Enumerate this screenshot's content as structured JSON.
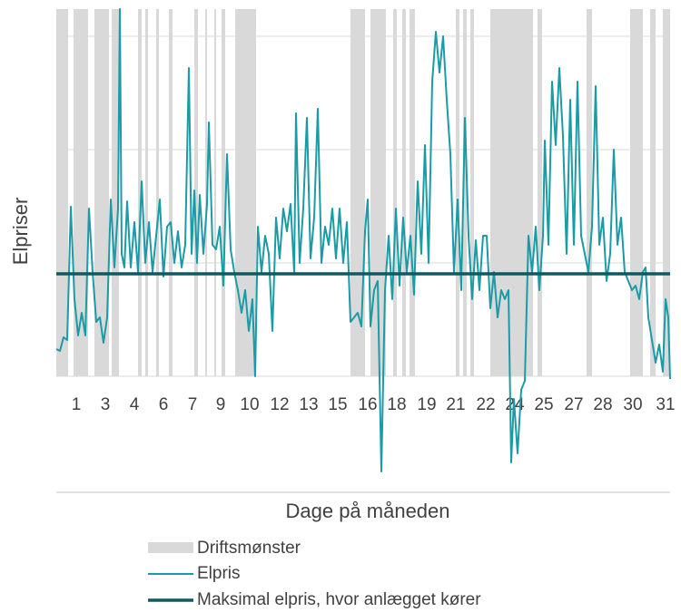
{
  "chart_data": {
    "type": "line",
    "ylabel": "Elpriser",
    "xlabel": "Dage på måneden",
    "xlim": [
      0,
      676
    ],
    "ylim": [
      -128,
      405
    ],
    "yticks": [
      0,
      125,
      250,
      375
    ],
    "grid": true,
    "xticks": [
      {
        "value": 22,
        "label": "1"
      },
      {
        "value": 54,
        "label": "3"
      },
      {
        "value": 86,
        "label": "4"
      },
      {
        "value": 118,
        "label": "6"
      },
      {
        "value": 150,
        "label": "7"
      },
      {
        "value": 181,
        "label": "9"
      },
      {
        "value": 213,
        "label": "10"
      },
      {
        "value": 246,
        "label": "12"
      },
      {
        "value": 278,
        "label": "13"
      },
      {
        "value": 310,
        "label": "15"
      },
      {
        "value": 343,
        "label": "16"
      },
      {
        "value": 375,
        "label": "18"
      },
      {
        "value": 408,
        "label": "19"
      },
      {
        "value": 440,
        "label": "21"
      },
      {
        "value": 473,
        "label": "22"
      },
      {
        "value": 505,
        "label": "24"
      },
      {
        "value": 537,
        "label": "25"
      },
      {
        "value": 570,
        "label": "27"
      },
      {
        "value": 602,
        "label": "28"
      },
      {
        "value": 635,
        "label": "30"
      },
      {
        "value": 671,
        "label": "31"
      }
    ],
    "bands": {
      "name": "Driftsmønster",
      "color": "#d9d9d9",
      "ranges": [
        [
          0,
          13
        ],
        [
          19,
          35
        ],
        [
          42,
          58
        ],
        [
          61,
          69
        ],
        [
          90,
          94
        ],
        [
          98,
          101
        ],
        [
          110,
          113
        ],
        [
          124,
          128
        ],
        [
          152,
          156
        ],
        [
          164,
          166
        ],
        [
          174,
          176
        ],
        [
          182,
          186
        ],
        [
          197,
          220
        ],
        [
          324,
          340
        ],
        [
          346,
          363
        ],
        [
          371,
          375
        ],
        [
          381,
          385
        ],
        [
          389,
          395
        ],
        [
          440,
          444
        ],
        [
          448,
          452
        ],
        [
          456,
          460
        ],
        [
          478,
          525
        ],
        [
          530,
          535
        ],
        [
          584,
          590
        ],
        [
          632,
          646
        ],
        [
          654,
          660
        ],
        [
          668,
          676
        ]
      ]
    },
    "series": [
      {
        "name": "Elpris",
        "color": "#1a9ba6",
        "x": [
          0,
          4,
          8,
          12,
          16,
          20,
          24,
          28,
          32,
          36,
          40,
          44,
          48,
          52,
          56,
          60,
          64,
          68,
          70,
          72,
          75,
          78,
          82,
          86,
          90,
          94,
          98,
          102,
          106,
          110,
          114,
          118,
          122,
          126,
          130,
          134,
          138,
          142,
          146,
          149,
          152,
          155,
          158,
          162,
          166,
          168,
          172,
          176,
          180,
          184,
          188,
          192,
          196,
          200,
          204,
          208,
          212,
          216,
          219,
          222,
          226,
          230,
          234,
          238,
          242,
          246,
          250,
          254,
          258,
          262,
          264,
          268,
          272,
          276,
          280,
          284,
          288,
          292,
          296,
          300,
          304,
          308,
          312,
          316,
          320,
          324,
          328,
          332,
          336,
          340,
          343,
          346,
          350,
          354,
          358,
          362,
          366,
          370,
          374,
          378,
          382,
          386,
          390,
          394,
          398,
          402,
          406,
          410,
          414,
          418,
          422,
          426,
          430,
          434,
          438,
          442,
          446,
          450,
          454,
          458,
          462,
          466,
          470,
          474,
          478,
          482,
          486,
          490,
          494,
          498,
          501,
          504,
          508,
          512,
          516,
          520,
          524,
          528,
          532,
          536,
          538,
          542,
          546,
          550,
          554,
          558,
          562,
          566,
          570,
          574,
          578,
          582,
          586,
          590,
          594,
          598,
          602,
          606,
          610,
          614,
          618,
          622,
          626,
          630,
          634,
          638,
          642,
          646,
          649,
          652,
          656,
          660,
          664,
          668,
          671,
          674,
          676
        ],
        "values": [
          30,
          28,
          43,
          40,
          187,
          85,
          45,
          70,
          45,
          185,
          115,
          60,
          65,
          37,
          65,
          195,
          120,
          185,
          405,
          135,
          120,
          193,
          120,
          170,
          115,
          215,
          125,
          170,
          115,
          155,
          195,
          110,
          165,
          170,
          125,
          160,
          120,
          145,
          340,
          135,
          205,
          125,
          200,
          135,
          190,
          280,
          145,
          140,
          165,
          100,
          245,
          140,
          115,
          95,
          70,
          95,
          50,
          85,
          0,
          165,
          115,
          155,
          135,
          50,
          175,
          130,
          185,
          160,
          190,
          115,
          290,
          125,
          185,
          285,
          130,
          175,
          295,
          125,
          165,
          145,
          185,
          130,
          185,
          125,
          170,
          60,
          65,
          70,
          55,
          160,
          195,
          55,
          95,
          105,
          -105,
          95,
          155,
          85,
          185,
          100,
          175,
          115,
          155,
          90,
          215,
          135,
          255,
          125,
          325,
          380,
          335,
          375,
          305,
          245,
          115,
          195,
          95,
          285,
          155,
          85,
          150,
          95,
          155,
          155,
          75,
          115,
          65,
          95,
          85,
          95,
          -95,
          -25,
          -85,
          -15,
          -5,
          155,
          115,
          165,
          95,
          155,
          260,
          145,
          325,
          255,
          340,
          265,
          135,
          305,
          145,
          325,
          155,
          135,
          115,
          165,
          320,
          145,
          175,
          105,
          135,
          250,
          145,
          175,
          115,
          105,
          95,
          100,
          85,
          115,
          120,
          65,
          40,
          15,
          35,
          5,
          85,
          65,
          -3
        ]
      }
    ],
    "threshold": {
      "name": "Maksimal elpris, hvor anlægget kører",
      "value": 113,
      "color": "#0d5a63"
    }
  }
}
